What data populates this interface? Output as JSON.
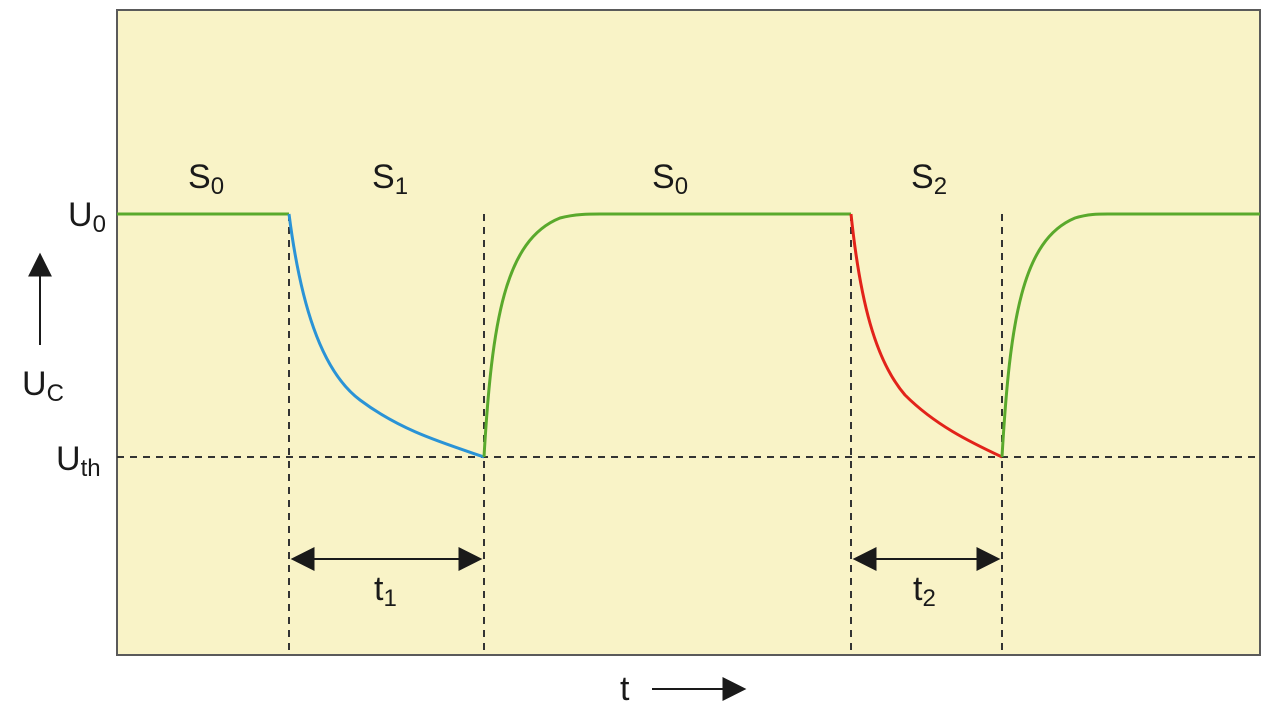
{
  "colors": {
    "background": "#f9f3c7",
    "frame": "#5a5a5a",
    "state_s0": "#5aa92c",
    "state_s1": "#2a93d6",
    "state_s2": "#e2231a",
    "guides": "#333333",
    "text": "#1a1a1a"
  },
  "labels": {
    "u0": {
      "main": "U",
      "sub": "0"
    },
    "uc": {
      "main": "U",
      "sub": "C"
    },
    "uth": {
      "main": "U",
      "sub": "th"
    },
    "s0_left": {
      "main": "S",
      "sub": "0"
    },
    "s1": {
      "main": "S",
      "sub": "1"
    },
    "s0_mid": {
      "main": "S",
      "sub": "0"
    },
    "s2": {
      "main": "S",
      "sub": "2"
    },
    "t1": {
      "main": "t",
      "sub": "1"
    },
    "t2": {
      "main": "t",
      "sub": "2"
    },
    "t_axis": "t"
  },
  "icons": {
    "y_axis": "arrow-up-icon",
    "x_axis": "arrow-right-icon",
    "interval": "double-arrow-icon"
  }
}
